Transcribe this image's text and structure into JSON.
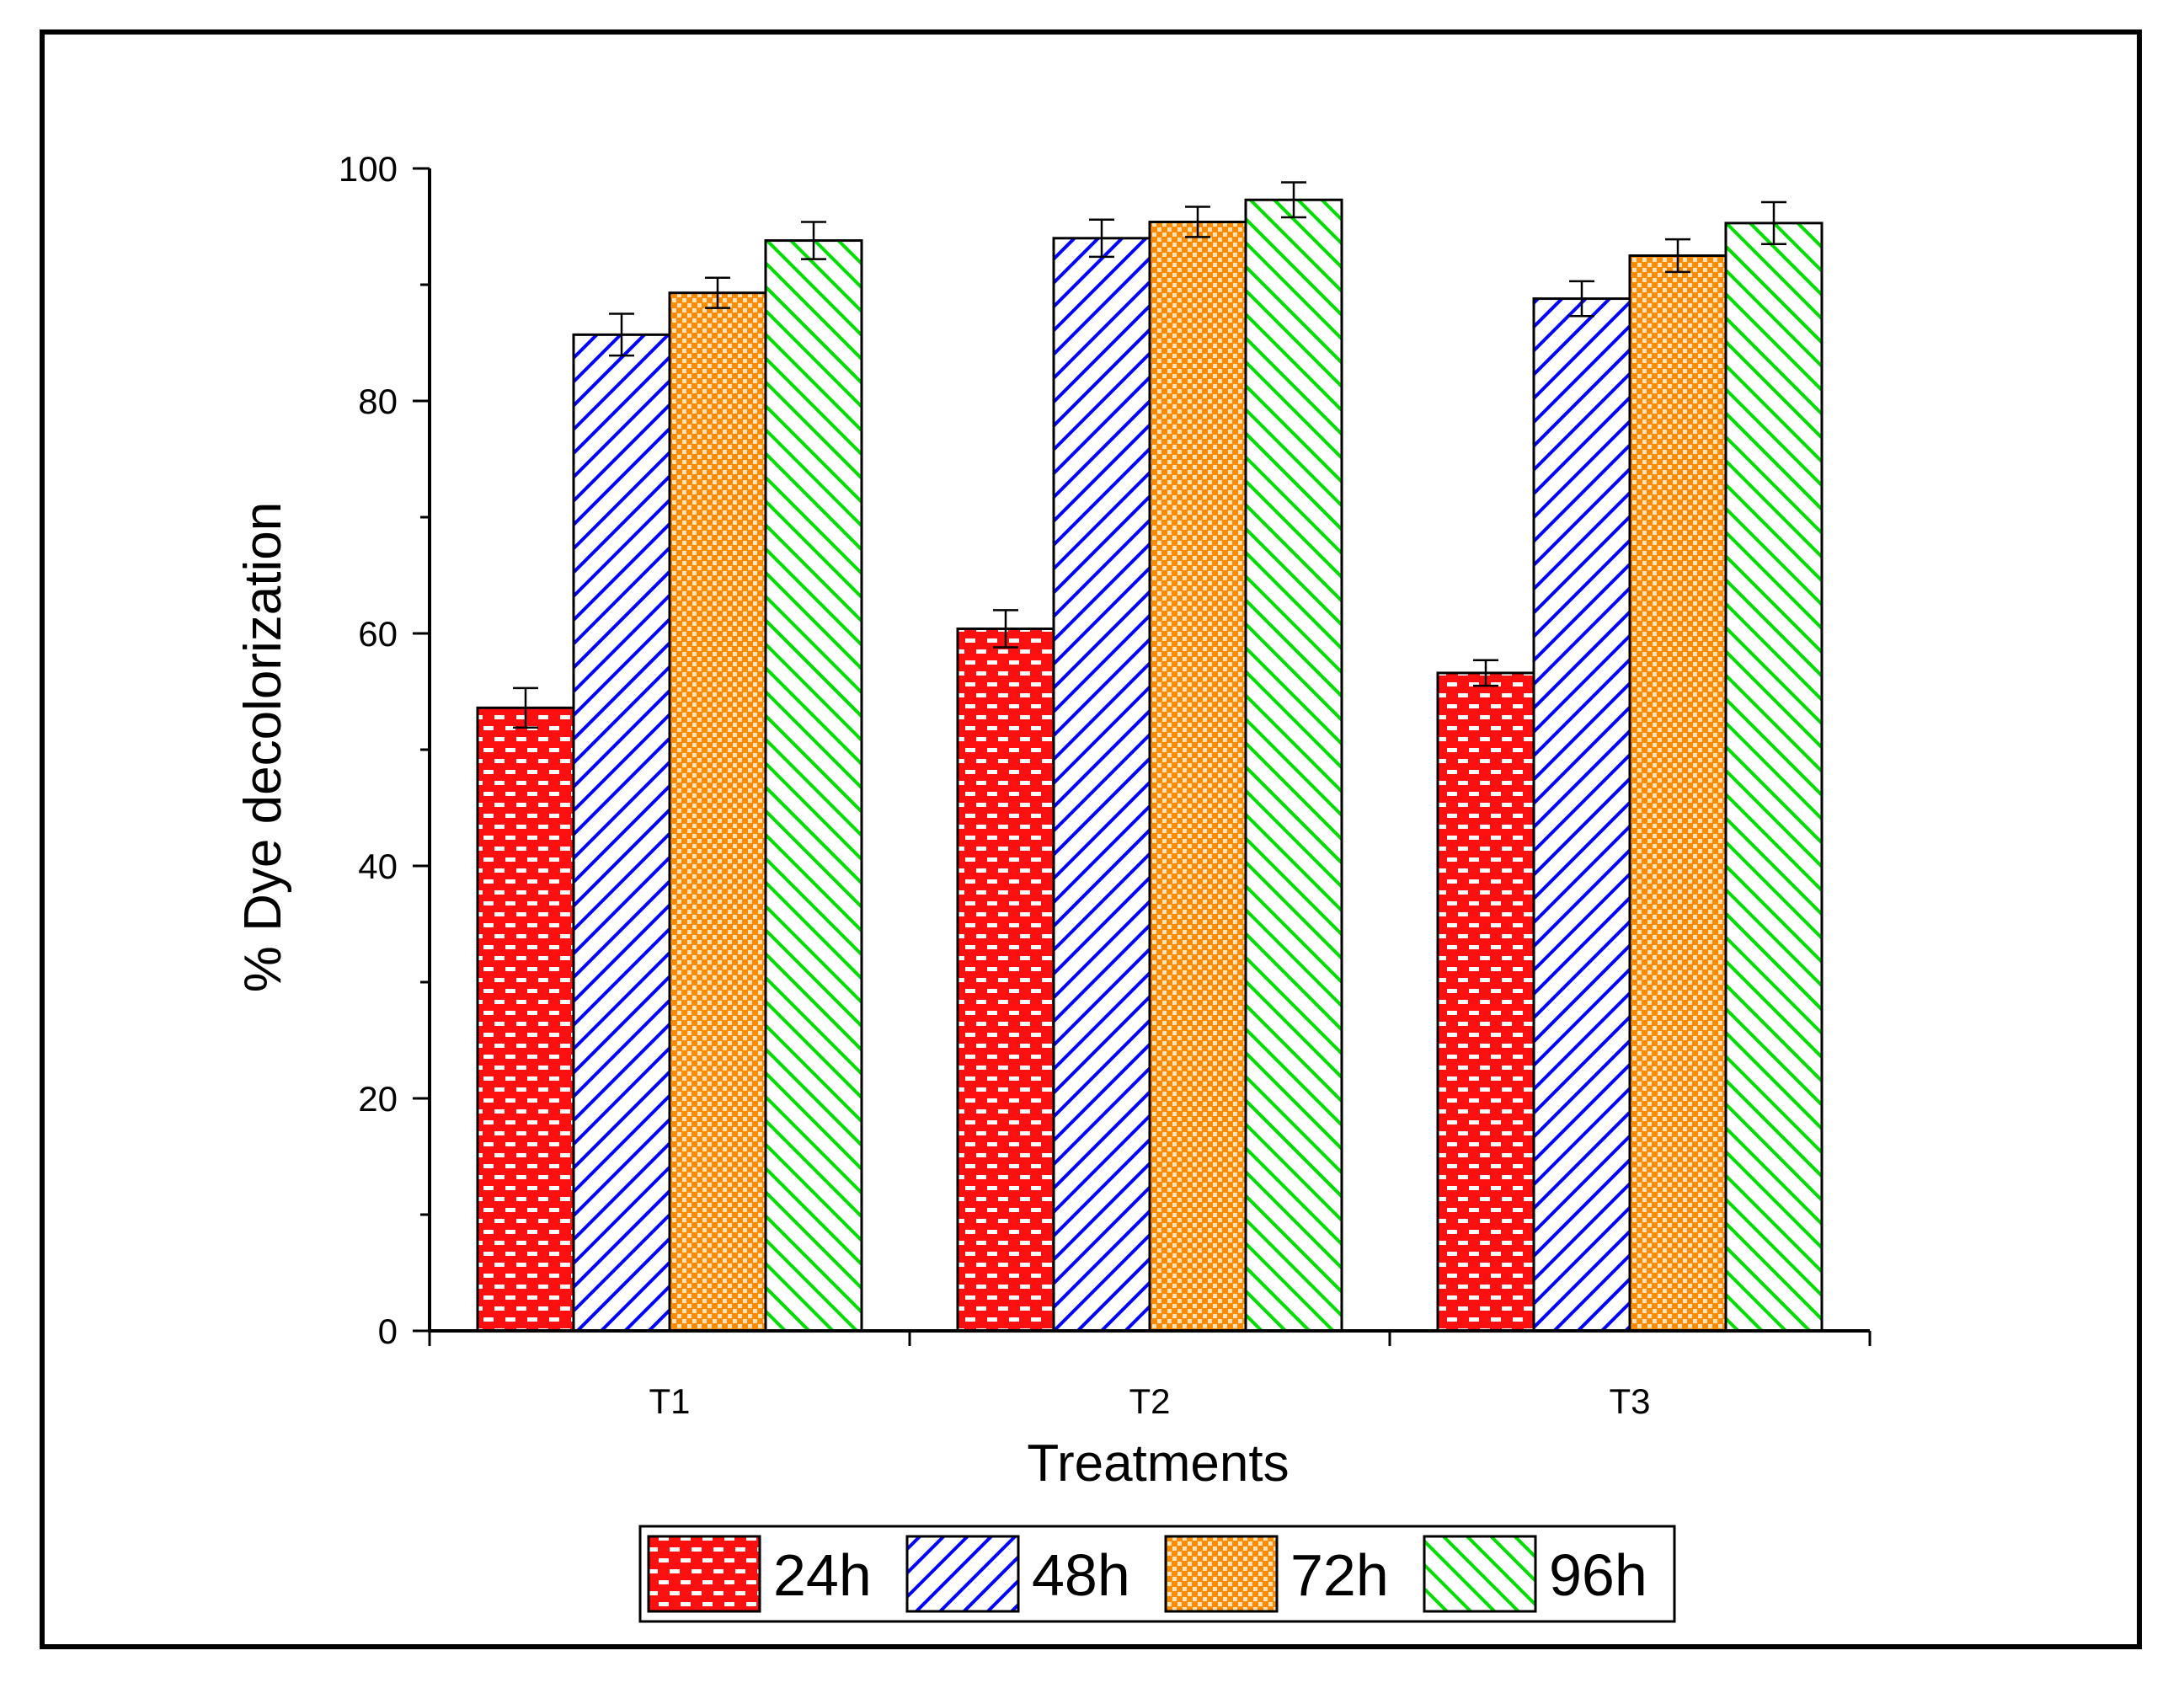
{
  "chart_data": {
    "type": "bar",
    "categories": [
      "T1",
      "T2",
      "T3"
    ],
    "series": [
      {
        "name": "24h",
        "values": [
          53.6,
          60.4,
          56.6
        ],
        "errors": [
          1.7,
          1.6,
          1.1
        ],
        "color": "#ff0000",
        "pattern": "bricks"
      },
      {
        "name": "48h",
        "values": [
          85.7,
          94.0,
          88.8
        ],
        "errors": [
          1.8,
          1.6,
          1.5
        ],
        "color": "#0000ff",
        "pattern": "diag-right"
      },
      {
        "name": "72h",
        "values": [
          89.3,
          95.4,
          92.5
        ],
        "errors": [
          1.3,
          1.3,
          1.4
        ],
        "color": "#ff8c00",
        "pattern": "checker"
      },
      {
        "name": "96h",
        "values": [
          93.8,
          97.3,
          95.3
        ],
        "errors": [
          1.6,
          1.5,
          1.8
        ],
        "color": "#00dd00",
        "pattern": "diag-left"
      }
    ],
    "xlabel": "Treatments",
    "ylabel": "% Dye decolorization",
    "ylim": [
      0,
      100
    ],
    "yticks": [
      0,
      20,
      40,
      60,
      80,
      100
    ],
    "legend_position": "bottom"
  }
}
